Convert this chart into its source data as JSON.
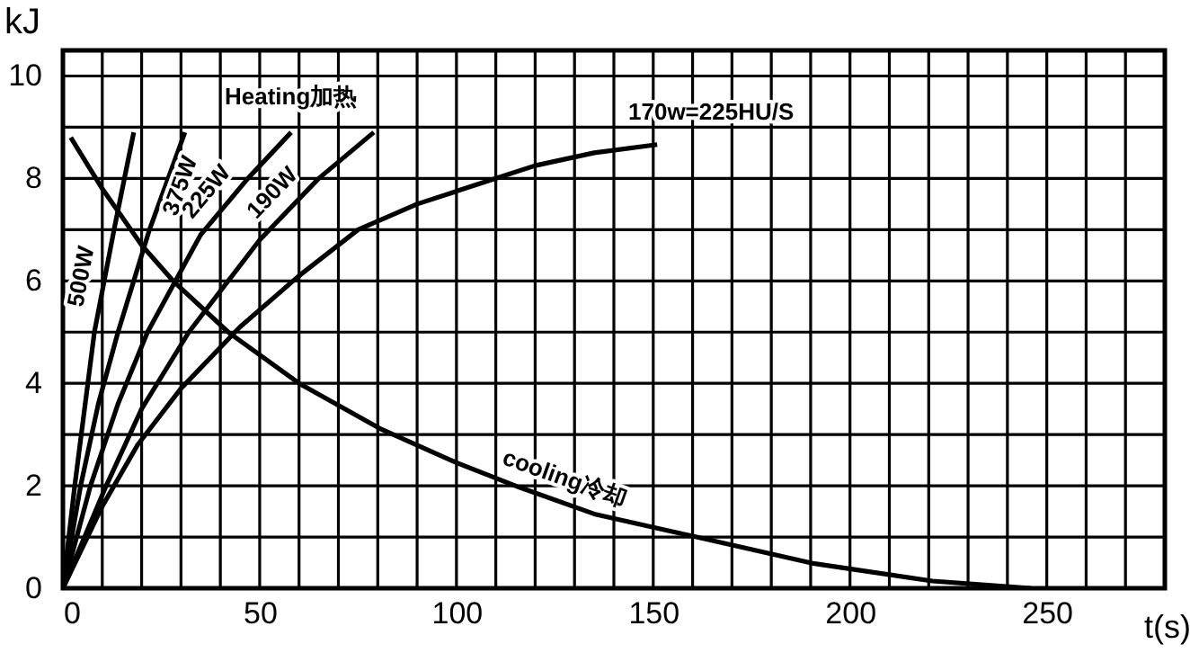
{
  "chart_data": {
    "type": "line",
    "xlabel": "t(s)",
    "ylabel": "kJ",
    "annotations": [
      "Heating加热"
    ],
    "xlim": [
      0,
      280
    ],
    "ylim": [
      0,
      10.5
    ],
    "xticks": [
      0,
      {
        "value": 10,
        "label": null
      },
      {
        "value": 20,
        "label": null
      },
      {
        "value": 30,
        "label": null
      },
      {
        "value": 40,
        "label": null
      },
      50,
      {
        "value": 60,
        "label": null
      },
      {
        "value": 70,
        "label": null
      },
      {
        "value": 80,
        "label": null
      },
      {
        "value": 90,
        "label": null
      },
      100,
      {
        "value": 110,
        "label": null
      },
      {
        "value": 120,
        "label": null
      },
      {
        "value": 130,
        "label": null
      },
      {
        "value": 140,
        "label": null
      },
      150,
      {
        "value": 160,
        "label": null
      },
      {
        "value": 170,
        "label": null
      },
      {
        "value": 180,
        "label": null
      },
      {
        "value": 190,
        "label": null
      },
      200,
      {
        "value": 210,
        "label": null
      },
      {
        "value": 220,
        "label": null
      },
      {
        "value": 230,
        "label": null
      },
      {
        "value": 240,
        "label": null
      },
      250,
      {
        "value": 260,
        "label": null
      },
      {
        "value": 270,
        "label": null
      }
    ],
    "yticks": [
      0,
      {
        "value": 1,
        "label": null
      },
      2,
      {
        "value": 3,
        "label": null
      },
      4,
      {
        "value": 5,
        "label": null
      },
      6,
      {
        "value": 7,
        "label": null
      },
      8,
      {
        "value": 9,
        "label": null
      },
      10
    ],
    "grid": true,
    "marker": "none",
    "line_style": "solid",
    "series": [
      {
        "name": "500W",
        "color": "#000000",
        "x": [
          0,
          3,
          5.5,
          8,
          13,
          18
        ],
        "values": [
          0,
          2,
          3.5,
          5,
          7,
          8.9
        ]
      },
      {
        "name": "375W",
        "color": "#000000",
        "x": [
          0,
          4.5,
          9,
          14,
          22,
          31
        ],
        "values": [
          0,
          2,
          3.6,
          5,
          7,
          8.9
        ]
      },
      {
        "name": "225W",
        "color": "#000000",
        "x": [
          0,
          7,
          14,
          21.5,
          35,
          47,
          58
        ],
        "values": [
          0,
          2,
          3.6,
          5,
          6.9,
          8,
          8.9
        ]
      },
      {
        "name": "190W",
        "color": "#000000",
        "x": [
          0,
          11,
          20,
          32,
          50,
          65,
          79
        ],
        "values": [
          0,
          2,
          3.5,
          5,
          6.8,
          8,
          8.9
        ]
      },
      {
        "name": "170w=225HU/S",
        "color": "#000000",
        "x": [
          0,
          10,
          19,
          30,
          45,
          60,
          75,
          90,
          106,
          120,
          135,
          151
        ],
        "values": [
          0,
          1.6,
          2.8,
          3.9,
          5.1,
          6.1,
          7,
          7.5,
          7.9,
          8.25,
          8.5,
          8.66
        ]
      },
      {
        "name": "cooling冷却",
        "color": "#000000",
        "x": [
          2,
          10,
          20,
          28,
          42,
          60,
          81,
          100,
          116,
          135,
          161,
          191,
          221,
          246
        ],
        "values": [
          8.8,
          7.8,
          6.7,
          6,
          5,
          4,
          3.1,
          2.45,
          1.97,
          1.45,
          1,
          0.48,
          0.14,
          0
        ]
      }
    ]
  }
}
